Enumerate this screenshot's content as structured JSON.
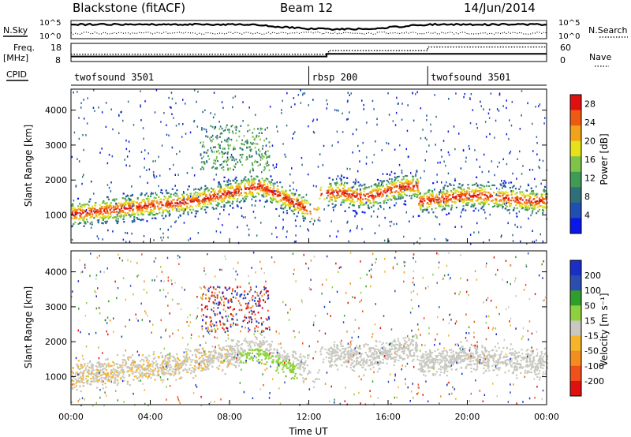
{
  "header": {
    "station": "Blackstone (fitACF)",
    "beam": "Beam 12",
    "date": "14/Jun/2014"
  },
  "colors": {
    "power": [
      "#0a17e8",
      "#1f4fb3",
      "#2e6f7a",
      "#3f9a55",
      "#7fc34a",
      "#e6e21a",
      "#f2a21a",
      "#ee5a12",
      "#e01010"
    ],
    "velocity": [
      "#e01010",
      "#f0501a",
      "#f28d1e",
      "#f5b42a",
      "#c8c8c0",
      "#8ed13e",
      "#2f9e2a",
      "#2a4fb0",
      "#1a2ec8"
    ]
  },
  "chart_data": [
    {
      "type": "line",
      "panel": "noise",
      "left_labels": [
        "N.Sky"
      ],
      "right_labels": [
        "N.Search"
      ],
      "left_ticks": [
        "10^5",
        "10^0"
      ],
      "right_ticks": [
        "10^5",
        "10^0"
      ],
      "x_range_hours": [
        0,
        24
      ]
    },
    {
      "type": "line",
      "panel": "frequency",
      "left_labels": [
        "Freq.",
        "[MHz]"
      ],
      "right_labels": [
        "Nave"
      ],
      "left_ticks": [
        "18",
        "8"
      ],
      "right_ticks": [
        "60",
        "0"
      ],
      "freq_mhz": {
        "x_hours": [
          0,
          12.9,
          12.9,
          24
        ],
        "values": [
          10.8,
          10.8,
          12.2,
          12.2
        ]
      },
      "nave": {
        "x_hours": [
          0,
          13,
          13,
          18,
          18,
          24
        ],
        "values": [
          24,
          24,
          36,
          36,
          48,
          48
        ]
      }
    },
    {
      "type": "table",
      "panel": "cpid",
      "label": "CPID",
      "segments": [
        {
          "name": "twofsound 3501",
          "start_hour": 0,
          "end_hour": 12
        },
        {
          "name": "rbsp 200",
          "start_hour": 12,
          "end_hour": 18
        },
        {
          "name": "twofsound 3501",
          "start_hour": 18,
          "end_hour": 24
        }
      ]
    },
    {
      "type": "heatmap",
      "panel": "power",
      "ylabel": "Slant Range [km]",
      "yticks": [
        1000,
        2000,
        3000,
        4000
      ],
      "ylim": [
        200,
        4600
      ],
      "xlim_hours": [
        0,
        24
      ],
      "colorbar_label": "Power [dB]",
      "colorbar_ticks": [
        4,
        8,
        12,
        16,
        20,
        24,
        28
      ],
      "colorbar_range": [
        0,
        30
      ]
    },
    {
      "type": "heatmap",
      "panel": "velocity",
      "ylabel": "Slant Range [km]",
      "yticks": [
        1000,
        2000,
        3000,
        4000
      ],
      "ylim": [
        200,
        4600
      ],
      "xlim_hours": [
        0,
        24
      ],
      "colorbar_label": "Velocity [m s⁻¹]",
      "colorbar_ticks": [
        200,
        100,
        50,
        15,
        -15,
        -50,
        -100,
        -200
      ],
      "xlabel": "Time UT",
      "xticks": [
        "00:00",
        "04:00",
        "08:00",
        "12:00",
        "16:00",
        "20:00",
        "00:00"
      ]
    }
  ]
}
